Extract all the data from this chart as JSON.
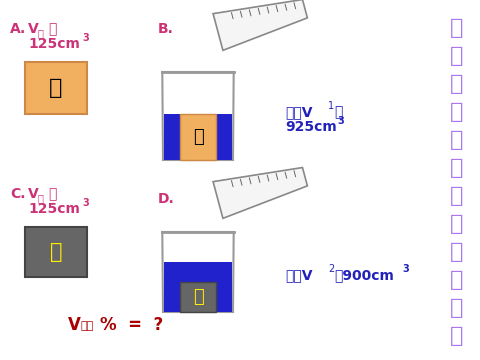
{
  "bg_color": "#ffffff",
  "title_chars": [
    "测",
    "定",
    "土",
    "壤",
    "中",
    "空",
    "气",
    "的",
    "体",
    "积",
    "分",
    "数"
  ],
  "title_color": "#aa77ee",
  "label_color": "#cc3377",
  "water_label_color": "#2222bb",
  "bottom_label_color": "#aa0000",
  "soil_box_color": "#f0b060",
  "soil_box_edge": "#cc8844",
  "iron_box_color": "#666666",
  "iron_box_edge": "#444444",
  "soil_text_color": "#000000",
  "iron_text_color": "#ffee00",
  "beaker_fill": "#ffffff",
  "beaker_edge": "#999999",
  "water_color": "#2222cc",
  "graduated_fill": "#f5f5f5",
  "graduated_edge": "#888888",
  "figw": 4.8,
  "figh": 3.6,
  "dpi": 100
}
